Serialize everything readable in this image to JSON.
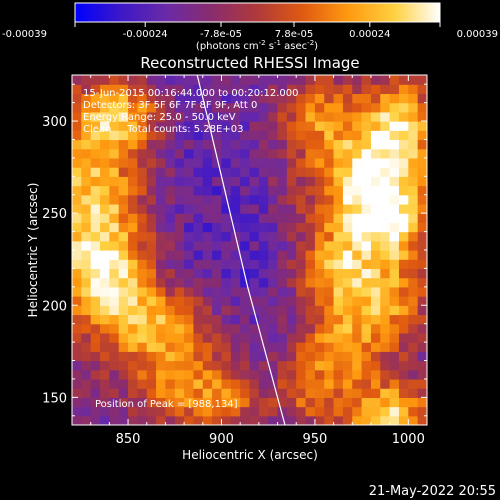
{
  "chart_data": {
    "type": "heatmap",
    "title": "Reconstructed RHESSI Image",
    "xlabel": "Heliocentric X (arcsec)",
    "ylabel": "Heliocentric Y (arcsec)",
    "xlim": [
      820,
      1010
    ],
    "ylim": [
      135,
      325
    ],
    "x_ticks": [
      850,
      900,
      950,
      1000
    ],
    "y_ticks": [
      150,
      200,
      250,
      300
    ],
    "colorbar": {
      "range": [
        -0.00039,
        0.00039
      ],
      "tick_values": [
        -0.00039,
        -0.00024,
        -7.8e-05,
        7.8e-05,
        0.00024,
        0.00039
      ],
      "tick_labels": [
        "-0.00039",
        "-0.00024",
        "-7.8e-05",
        "7.8e-05",
        "0.00024",
        "0.00039"
      ],
      "label_prefix": "(photons cm",
      "label_exp1": "-2",
      "label_mid": " s",
      "label_exp2": "-1",
      "label_mid2": " asec",
      "label_exp3": "-2",
      "label_suffix": ")",
      "colors": [
        "#0000ff",
        "#3c18c8",
        "#6a2aa6",
        "#8a2c6e",
        "#b03a3a",
        "#e05a10",
        "#ff9a10",
        "#ffd040",
        "#ffffff"
      ]
    },
    "annotations": [
      "15-Jun-2015 00:16:44.000 to 00:20:12.000",
      "Detectors: 3F 5F 6F 7F 8F 9F, Att 0",
      "Energy Range: 25.0 - 50.0 keV",
      "Clean     Total counts: 5.28E+03"
    ],
    "peak_label": "Position of Peak = [988,134]",
    "limb": [
      [
        887,
        325
      ],
      [
        893,
        300
      ],
      [
        900,
        270
      ],
      [
        907,
        240
      ],
      [
        914,
        210
      ],
      [
        922,
        180
      ],
      [
        930,
        150
      ],
      [
        934,
        135
      ]
    ],
    "hot_regions": [
      {
        "x": 830,
        "y": 260,
        "sx": 22,
        "sy": 30,
        "amp": 1.0
      },
      {
        "x": 845,
        "y": 305,
        "sx": 18,
        "sy": 16,
        "amp": 0.9
      },
      {
        "x": 838,
        "y": 215,
        "sx": 18,
        "sy": 20,
        "amp": 0.85
      },
      {
        "x": 865,
        "y": 190,
        "sx": 22,
        "sy": 14,
        "amp": 0.8
      },
      {
        "x": 880,
        "y": 160,
        "sx": 20,
        "sy": 16,
        "amp": 0.75
      },
      {
        "x": 905,
        "y": 145,
        "sx": 14,
        "sy": 12,
        "amp": 0.5
      },
      {
        "x": 975,
        "y": 270,
        "sx": 22,
        "sy": 22,
        "amp": 0.95
      },
      {
        "x": 995,
        "y": 300,
        "sx": 14,
        "sy": 18,
        "amp": 0.85
      },
      {
        "x": 990,
        "y": 245,
        "sx": 16,
        "sy": 18,
        "amp": 0.9
      },
      {
        "x": 960,
        "y": 220,
        "sx": 16,
        "sy": 16,
        "amp": 0.8
      },
      {
        "x": 985,
        "y": 200,
        "sx": 18,
        "sy": 16,
        "amp": 0.75
      },
      {
        "x": 960,
        "y": 175,
        "sx": 18,
        "sy": 14,
        "amp": 0.8
      },
      {
        "x": 988,
        "y": 140,
        "sx": 18,
        "sy": 14,
        "amp": 1.15
      },
      {
        "x": 945,
        "y": 150,
        "sx": 14,
        "sy": 12,
        "amp": 0.6
      },
      {
        "x": 950,
        "y": 305,
        "sx": 14,
        "sy": 14,
        "amp": 0.6
      }
    ]
  },
  "footer": {
    "date": "21-May-2022 20:55"
  }
}
